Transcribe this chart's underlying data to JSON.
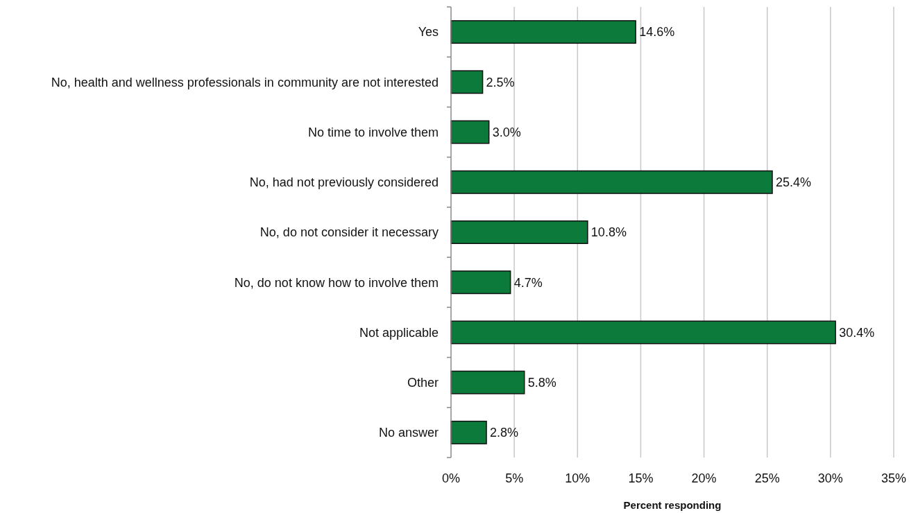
{
  "chart_data": {
    "type": "bar",
    "orientation": "horizontal",
    "xlabel": "Percent responding",
    "categories": [
      "Yes",
      "No, health and wellness professionals in community are not interested",
      "No time to involve them",
      "No, had not previously considered",
      "No, do not consider it necessary",
      "No, do not know how to involve them",
      "Not applicable",
      "Other",
      "No answer"
    ],
    "values": [
      14.6,
      2.5,
      3.0,
      25.4,
      10.8,
      4.7,
      30.4,
      5.8,
      2.8
    ],
    "value_labels": [
      "14.6%",
      "2.5%",
      "3.0%",
      "25.4%",
      "10.8%",
      "4.7%",
      "30.4%",
      "5.8%",
      "2.8%"
    ],
    "color": "#0b7a3b",
    "xlim": [
      0,
      35
    ],
    "xticks": [
      {
        "value": 0,
        "label": "0%"
      },
      {
        "value": 5,
        "label": "5%"
      },
      {
        "value": 10,
        "label": "10%"
      },
      {
        "value": 15,
        "label": "15%"
      },
      {
        "value": 20,
        "label": "20%"
      },
      {
        "value": 25,
        "label": "25%"
      },
      {
        "value": 30,
        "label": "30%"
      },
      {
        "value": 35,
        "label": "35%"
      }
    ],
    "grid": "x"
  }
}
